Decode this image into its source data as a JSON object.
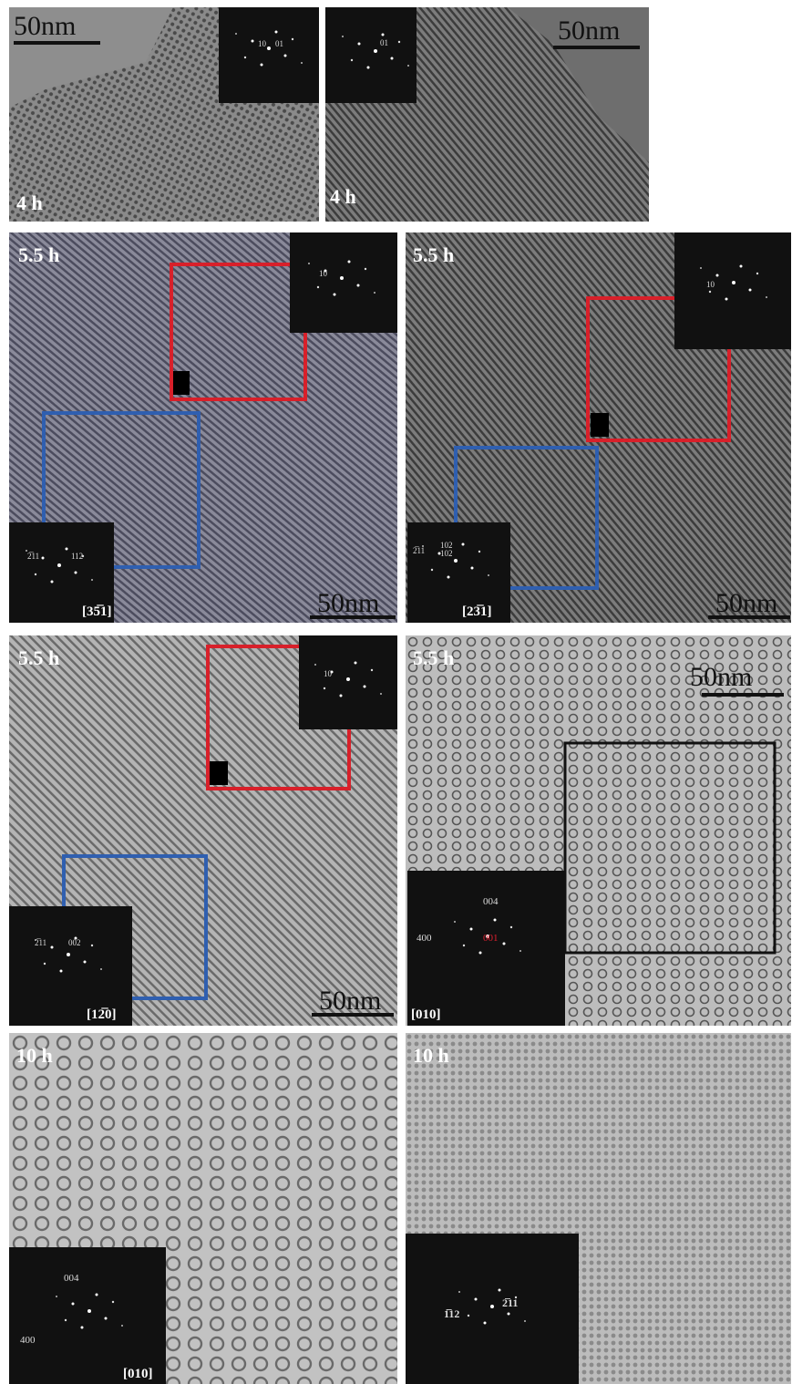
{
  "panels": [
    {
      "time": "4 h",
      "scale_bar": "50nm",
      "inset_spots": [
        "10",
        "01"
      ]
    },
    {
      "time": "4 h",
      "scale_bar": "50nm",
      "inset_spots": [
        "01"
      ]
    },
    {
      "time": "5.5 h",
      "scale_bar": "50nm",
      "inset_top_spots": [
        "10"
      ],
      "inset_bottom_spots": [
        "2̅11",
        "112"
      ],
      "zone_axis": "[35̅1]"
    },
    {
      "time": "5.5 h",
      "scale_bar": "50nm",
      "inset_top_spots": [
        "10"
      ],
      "inset_bottom_spots": [
        "2̅11",
        "102",
        "102"
      ],
      "zone_axis": "[23̅1]"
    },
    {
      "time": "5.5 h",
      "scale_bar": "50nm",
      "inset_top_spots": [
        "10"
      ],
      "inset_bottom_spots": [
        "2̅11",
        "002"
      ],
      "zone_axis": "[12̅0]"
    },
    {
      "time": "5.5 h",
      "scale_bar": "50nm",
      "inset_spots": [
        "004",
        "400",
        "001"
      ],
      "zone_axis": "[010]"
    },
    {
      "time": "10 h",
      "inset_spots": [
        "004",
        "400"
      ],
      "zone_axis": "[010]"
    },
    {
      "time": "10 h",
      "inset_spots": [
        "2̅11",
        "1̅12"
      ]
    }
  ]
}
